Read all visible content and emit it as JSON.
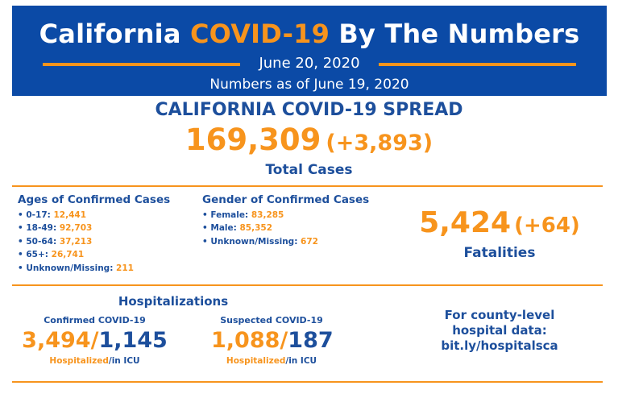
{
  "header": {
    "title_part1": "California",
    "title_highlight": "COVID-19",
    "title_part2": "By The Numbers",
    "date": "June 20, 2020",
    "as_of": "Numbers as of June 19, 2020"
  },
  "spread": {
    "title": "CALIFORNIA COVID-19 SPREAD",
    "total_cases": "169,309",
    "total_change": "(+3,893)",
    "total_label": "Total Cases"
  },
  "ages": {
    "title": "Ages of Confirmed Cases",
    "items": [
      {
        "label": "• 0-17:",
        "value": "12,441"
      },
      {
        "label": "• 18-49:",
        "value": "92,703"
      },
      {
        "label": "• 50-64:",
        "value": "37,213"
      },
      {
        "label": "• 65+:",
        "value": "26,741"
      },
      {
        "label": "• Unknown/Missing:",
        "value": "211"
      }
    ]
  },
  "gender": {
    "title": "Gender of Confirmed Cases",
    "items": [
      {
        "label": "• Female:",
        "value": "83,285"
      },
      {
        "label": "• Male:",
        "value": "85,352"
      },
      {
        "label": "• Unknown/Missing:",
        "value": "672"
      }
    ]
  },
  "fatalities": {
    "number": "5,424",
    "change": "(+64)",
    "label": "Fatalities"
  },
  "hospitalizations": {
    "title": "Hospitalizations",
    "confirmed": {
      "subtitle": "Confirmed COVID-19",
      "hospitalized": "3,494",
      "icu": "1,145",
      "hospitalized_label": "Hospitalized",
      "icu_label": "in ICU"
    },
    "suspected": {
      "subtitle": "Suspected COVID-19",
      "hospitalized": "1,088",
      "icu": "187",
      "hospitalized_label": "Hospitalized",
      "icu_label": "in ICU"
    }
  },
  "county_note": {
    "line1": "For county-level",
    "line2": "hospital data:",
    "line3": "bit.ly/hospitalsca"
  },
  "colors": {
    "banner_blue": "#0b4aa6",
    "text_blue": "#1d4f9c",
    "accent_orange": "#f7941d"
  }
}
